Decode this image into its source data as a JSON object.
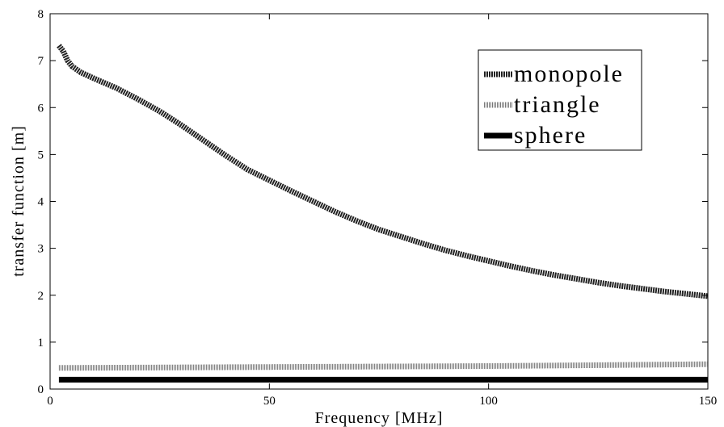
{
  "chart_data": {
    "type": "line",
    "xlabel": "Frequency [MHz]",
    "ylabel": "transfer function [m]",
    "xlim": [
      0,
      150
    ],
    "ylim": [
      0,
      8
    ],
    "xticks": [
      0,
      50,
      100,
      150
    ],
    "yticks": [
      0,
      1,
      2,
      3,
      4,
      5,
      6,
      7,
      8
    ],
    "grid": false,
    "legend_position": "top-right",
    "series": [
      {
        "name": "monopole",
        "x": [
          2,
          3,
          4,
          5,
          7,
          10,
          15,
          20,
          25,
          30,
          35,
          40,
          45,
          50,
          55,
          60,
          65,
          70,
          75,
          80,
          85,
          90,
          95,
          100,
          105,
          110,
          115,
          120,
          125,
          130,
          135,
          140,
          145,
          150
        ],
        "y": [
          7.32,
          7.2,
          7.0,
          6.88,
          6.75,
          6.62,
          6.42,
          6.18,
          5.92,
          5.62,
          5.3,
          4.98,
          4.68,
          4.45,
          4.22,
          4.0,
          3.78,
          3.58,
          3.4,
          3.25,
          3.1,
          2.96,
          2.84,
          2.73,
          2.62,
          2.52,
          2.43,
          2.35,
          2.27,
          2.2,
          2.14,
          2.08,
          2.03,
          1.98
        ]
      },
      {
        "name": "triangle",
        "x": [
          2,
          25,
          50,
          75,
          100,
          125,
          150
        ],
        "y": [
          0.45,
          0.46,
          0.47,
          0.48,
          0.49,
          0.51,
          0.53
        ]
      },
      {
        "name": "sphere",
        "x": [
          2,
          50,
          100,
          150
        ],
        "y": [
          0.2,
          0.2,
          0.2,
          0.2
        ]
      }
    ]
  }
}
